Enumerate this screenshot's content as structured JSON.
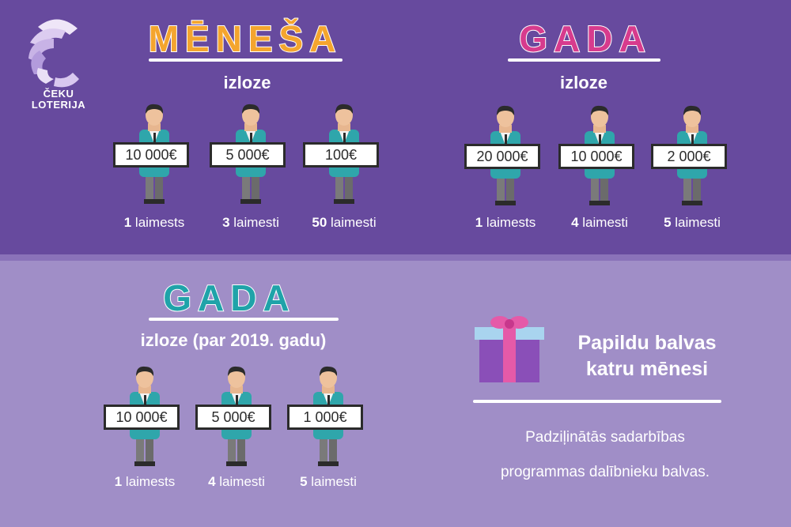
{
  "brand": {
    "name_line1": "ČEKU",
    "name_line2": "LOTERIJA"
  },
  "monthly": {
    "title": "MĒNEŠA",
    "subtitle": "izloze",
    "color": "#f4a52e",
    "prizes": [
      {
        "amount": "10 000€",
        "count": "1",
        "label": "laimests"
      },
      {
        "amount": "5 000€",
        "count": "3",
        "label": "laimesti"
      },
      {
        "amount": "100€",
        "count": "50",
        "label": "laimesti"
      }
    ]
  },
  "yearly": {
    "title": "GADA",
    "subtitle": "izloze",
    "color": "#d73b8d",
    "prizes": [
      {
        "amount": "20 000€",
        "count": "1",
        "label": "laimests"
      },
      {
        "amount": "10 000€",
        "count": "4",
        "label": "laimesti"
      },
      {
        "amount": "2 000€",
        "count": "5",
        "label": "laimesti"
      }
    ]
  },
  "yearly2019": {
    "title": "GADA",
    "subtitle": "izloze (par 2019. gadu)",
    "color": "#1fa3a9",
    "prizes": [
      {
        "amount": "10 000€",
        "count": "1",
        "label": "laimests"
      },
      {
        "amount": "5 000€",
        "count": "4",
        "label": "laimesti"
      },
      {
        "amount": "1 000€",
        "count": "5",
        "label": "laimesti"
      }
    ]
  },
  "bonus": {
    "title_line1": "Papildu balvas",
    "title_line2": "katru mēnesi",
    "desc_line1": "Padziļinātās sadarbības",
    "desc_line2": "programmas dalībnieku balvas."
  }
}
